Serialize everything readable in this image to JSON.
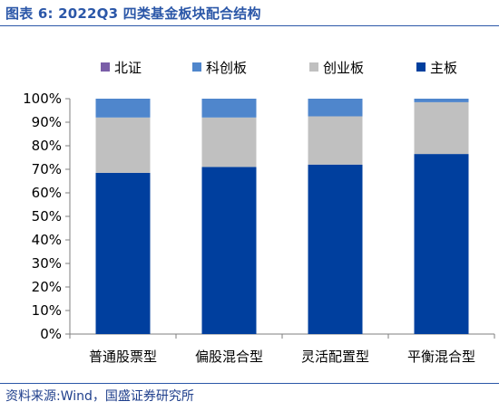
{
  "header": {
    "title": "图表 6:  2022Q3 四类基金板块配合结构"
  },
  "footer": {
    "source": "资料来源:Wind，国盛证券研究所"
  },
  "chart_data": {
    "type": "bar",
    "stacked": true,
    "percent": true,
    "categories": [
      "普通股票型",
      "偏股混合型",
      "灵活配置型",
      "平衡混合型"
    ],
    "series": [
      {
        "name": "主板",
        "color": "#003f9e",
        "values": [
          68.5,
          71.0,
          72.0,
          76.5
        ]
      },
      {
        "name": "创业板",
        "color": "#c0c0c0",
        "values": [
          23.5,
          21.0,
          20.5,
          22.0
        ]
      },
      {
        "name": "科创板",
        "color": "#4f86cc",
        "values": [
          8.0,
          8.0,
          7.5,
          1.5
        ]
      },
      {
        "name": "北证",
        "color": "#7a5ea8",
        "values": [
          0.0,
          0.0,
          0.0,
          0.0
        ]
      }
    ],
    "legend_order": [
      "北证",
      "科创板",
      "创业板",
      "主板"
    ],
    "legend_position": "top",
    "yticks": [
      "0%",
      "10%",
      "20%",
      "30%",
      "40%",
      "50%",
      "60%",
      "70%",
      "80%",
      "90%",
      "100%"
    ],
    "ylim": [
      0,
      100
    ],
    "grid": false
  }
}
